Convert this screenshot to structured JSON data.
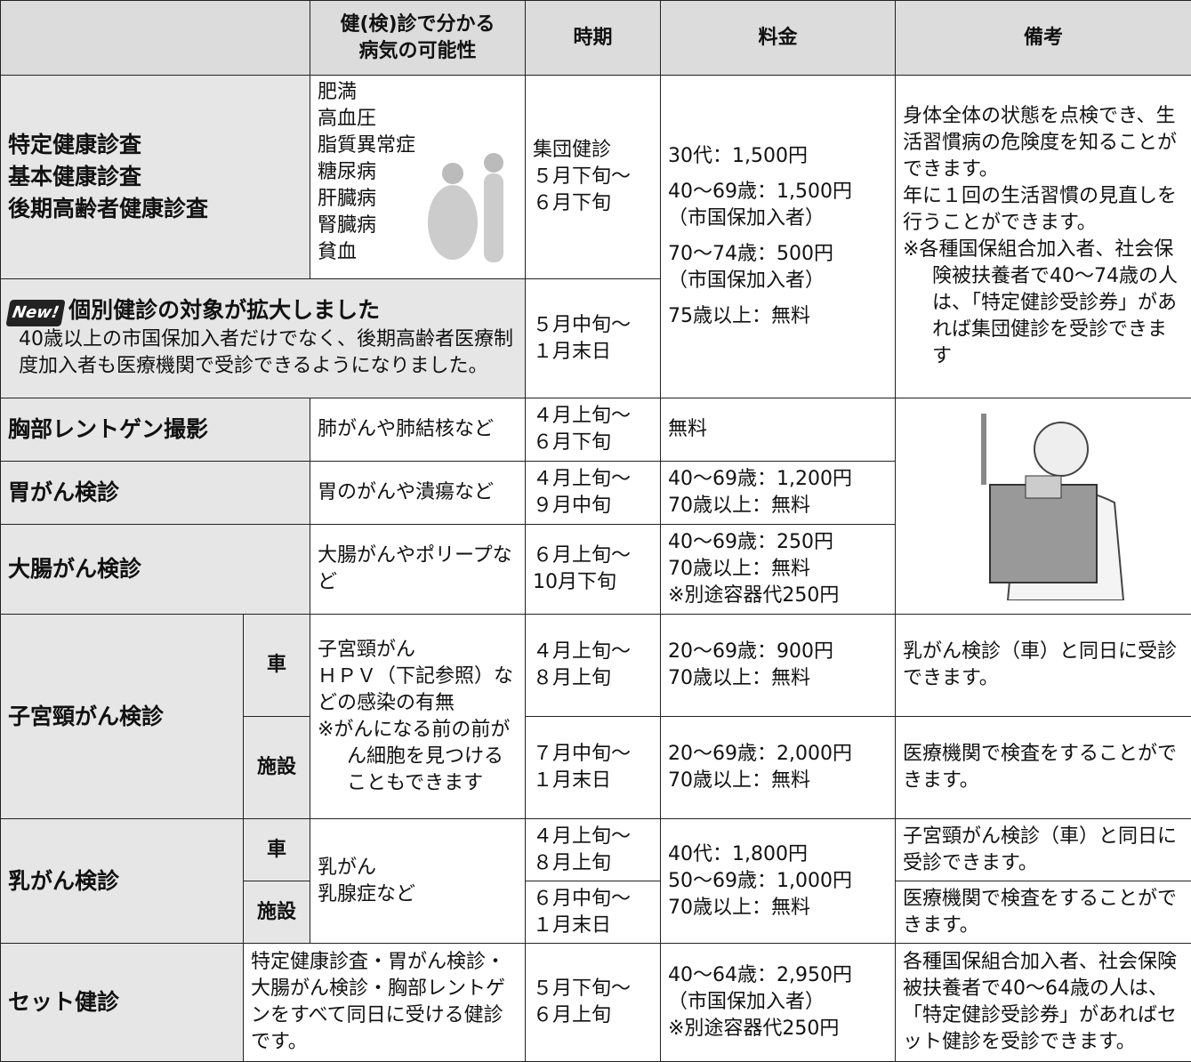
{
  "table": {
    "header": {
      "disease": [
        "健(検)診で分かる",
        "病気の可能性"
      ],
      "period": "時期",
      "fee": "料金",
      "note": "備考"
    },
    "rows": [
      {
        "name": [
          "特定健康診査",
          "基本健康診査",
          "後期高齢者健康診査"
        ],
        "diseases": [
          "肥満",
          "高血圧",
          "脂質異常症",
          "糖尿病",
          "肝臓病",
          "腎臓病",
          "貧血"
        ],
        "period": [
          "集団健診",
          "５月下旬〜",
          "６月下旬"
        ],
        "fee": [
          [
            "30代：1,500円"
          ],
          [
            "40〜69歳：1,500円",
            "（市国保加入者）"
          ],
          [
            "70〜74歳：500円",
            "（市国保加入者）"
          ],
          [
            "75歳以上：無料"
          ]
        ],
        "note": [
          "身体全体の状態を点検でき、生活習慣病の危険度を知ることができます。",
          "年に１回の生活習慣の見直しを行うことができます。",
          "※各種国保組合加入者、社会保険被扶養者で40〜74歳の人は、「特定健診受診券」があれば集団健診を受診できます"
        ]
      },
      {
        "badge": "New!",
        "title": "個別健診の対象が拡大しました",
        "text": "40歳以上の市国保加入者だけでなく、後期高齢者医療制度加入者も医療機関で受診できるようになりました。",
        "period": [
          "５月中旬〜",
          "１月末日"
        ]
      },
      {
        "name": "胸部レントゲン撮影",
        "diseases": "肺がんや肺結核など",
        "period": [
          "４月上旬〜",
          "６月下旬"
        ],
        "fee": [
          "無料"
        ]
      },
      {
        "name": "胃がん検診",
        "diseases": "胃のがんや潰瘍など",
        "period": [
          "４月上旬〜",
          "９月中旬"
        ],
        "fee": [
          "40〜69歳：1,200円",
          "70歳以上：無料"
        ]
      },
      {
        "name": "大腸がん検診",
        "diseases": "大腸がんやポリープなど",
        "period": [
          "６月上旬〜",
          "10月下旬"
        ],
        "fee": [
          "40〜69歳：250円",
          "70歳以上：無料",
          "※別途容器代250円"
        ]
      },
      {
        "name": "子宮頸がん検診",
        "diseases": [
          "子宮頸がん",
          "ＨＰＶ（下記参照）などの感染の有無",
          "※がんになる前の前がん細胞を見つけることもできます"
        ],
        "sub": [
          {
            "type": "車",
            "period": [
              "４月上旬〜",
              "８月上旬"
            ],
            "fee": [
              "20〜69歳：900円",
              "70歳以上：無料"
            ],
            "note": "乳がん検診（車）と同日に受診できます。"
          },
          {
            "type": "施設",
            "period": [
              "７月中旬〜",
              "１月末日"
            ],
            "fee": [
              "20〜69歳：2,000円",
              "70歳以上：無料"
            ],
            "note": "医療機関で検査をすることができます。"
          }
        ]
      },
      {
        "name": "乳がん検診",
        "diseases": [
          "乳がん",
          "乳腺症など"
        ],
        "fee": [
          "40代：1,800円",
          "50〜69歳：1,000円",
          "70歳以上：無料"
        ],
        "sub": [
          {
            "type": "車",
            "period": [
              "４月上旬〜",
              "８月上旬"
            ],
            "note": "子宮頸がん検診（車）と同日に受診できます。"
          },
          {
            "type": "施設",
            "period": [
              "６月中旬〜",
              "１月末日"
            ],
            "note": "医療機関で検査をすることができます。"
          }
        ]
      },
      {
        "name": "セット健診",
        "desc": "特定健康診査・胃がん検診・大腸がん検診・胸部レントゲンをすべて同日に受ける健診です。",
        "period": [
          "５月下旬〜",
          "６月上旬"
        ],
        "fee": [
          "40〜64歳：2,950円",
          "（市国保加入者）",
          "※別途容器代250円"
        ],
        "note": "各種国保組合加入者、社会保険被扶養者で40〜64歳の人は、「特定健診受診券」があればセット健診を受診できます。"
      }
    ]
  }
}
